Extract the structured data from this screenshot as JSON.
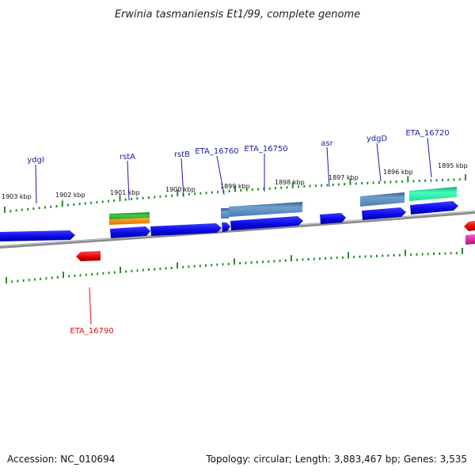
{
  "title": "Erwinia tasmaniensis Et1/99, complete genome",
  "kbp_labels": [
    "1903 kbp",
    "1902 kbp",
    "1901 kbp",
    "1900 kbp",
    "1899 kbp",
    "1898 kbp",
    "1897 kbp",
    "1896 kbp",
    "1895 kbp"
  ],
  "gene_labels": {
    "ydgI": "ydgI",
    "rstA": "rstA",
    "rstB": "rstB",
    "eta16760": "ETA_16760",
    "eta16750": "ETA_16750",
    "asr": "asr",
    "ydgD": "ydgD",
    "eta16720": "ETA_16720",
    "eta16790": "ETA_16790"
  },
  "colors": {
    "cds": "#0a0ae6",
    "rna_red": "#e00000",
    "gene_steel": "#4a7fb0",
    "gene_teal": "#22dd99",
    "gene_green": "#33bb33",
    "gene_orange": "#ff8800",
    "gene_pink": "#dd2299",
    "tick": "#2a8a2a",
    "backbone": "#8a8a8a",
    "label_blue": "#1a1aa6",
    "label_red": "#dd1111"
  },
  "footer": {
    "accession": "Accession: NC_010694",
    "topology": "Topology: circular; Length: 3,883,467 bp; Genes: 3,535"
  }
}
